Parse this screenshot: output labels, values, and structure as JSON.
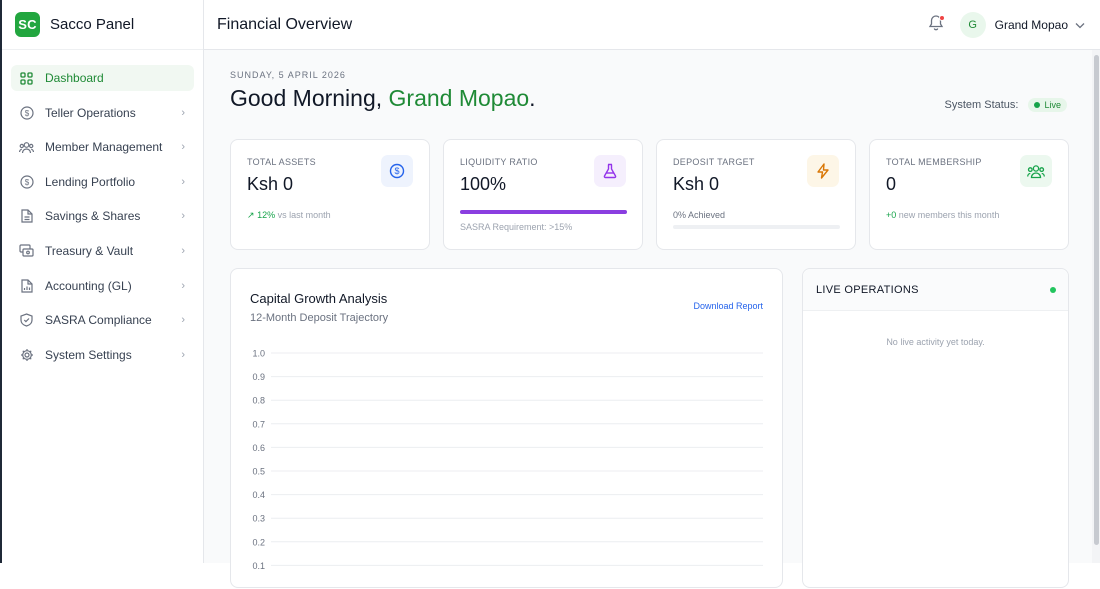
{
  "brand": {
    "logo": "SC",
    "name": "Sacco Panel"
  },
  "sidebar": {
    "items": [
      {
        "label": "Dashboard",
        "icon": "grid-icon",
        "active": true
      },
      {
        "label": "Teller Operations",
        "icon": "dollar-circle-icon"
      },
      {
        "label": "Member Management",
        "icon": "users-icon"
      },
      {
        "label": "Lending Portfolio",
        "icon": "dollar-circle-icon"
      },
      {
        "label": "Savings & Shares",
        "icon": "document-icon"
      },
      {
        "label": "Treasury & Vault",
        "icon": "cards-icon"
      },
      {
        "label": "Accounting (GL)",
        "icon": "file-chart-icon"
      },
      {
        "label": "SASRA Compliance",
        "icon": "shield-icon"
      },
      {
        "label": "System Settings",
        "icon": "gear-icon"
      }
    ]
  },
  "header": {
    "title": "Financial Overview",
    "user": {
      "initial": "G",
      "name": "Grand Mopao"
    }
  },
  "main": {
    "date": "SUNDAY, 5 APRIL 2026",
    "greeting_prefix": "Good Morning, ",
    "greeting_name": "Grand Mopao",
    "greeting_suffix": ".",
    "status_label": "System Status:",
    "status_value": "Live"
  },
  "cards": {
    "assets": {
      "label": "TOTAL ASSETS",
      "value": "Ksh 0",
      "trend": "12%",
      "trend_note": "vs last month"
    },
    "liquidity": {
      "label": "LIQUIDITY RATIO",
      "value": "100%",
      "progress": 1.0,
      "note": "SASRA Requirement: >15%"
    },
    "deposit": {
      "label": "DEPOSIT TARGET",
      "value": "Ksh 0",
      "note": "0% Achieved",
      "progress": 0
    },
    "membership": {
      "label": "TOTAL MEMBERSHIP",
      "value": "0",
      "delta": "+0",
      "delta_note": "new members this month"
    }
  },
  "colors": {
    "accent": "#1f8a36",
    "purple": "#8a3ee0",
    "blue": "#2563eb",
    "amber": "#d97706"
  },
  "chart_section": {
    "title": "Capital Growth Analysis",
    "subtitle": "12-Month Deposit Trajectory",
    "download_label": "Download Report"
  },
  "chart_data": {
    "type": "line",
    "series": [],
    "y_ticks": [
      "1.0",
      "0.9",
      "0.8",
      "0.7",
      "0.6",
      "0.5",
      "0.4",
      "0.3",
      "0.2",
      "0.1"
    ],
    "ylim": [
      0,
      1.0
    ],
    "grid": true
  },
  "operations": {
    "title": "LIVE OPERATIONS",
    "empty_text": "No live activity yet today."
  }
}
